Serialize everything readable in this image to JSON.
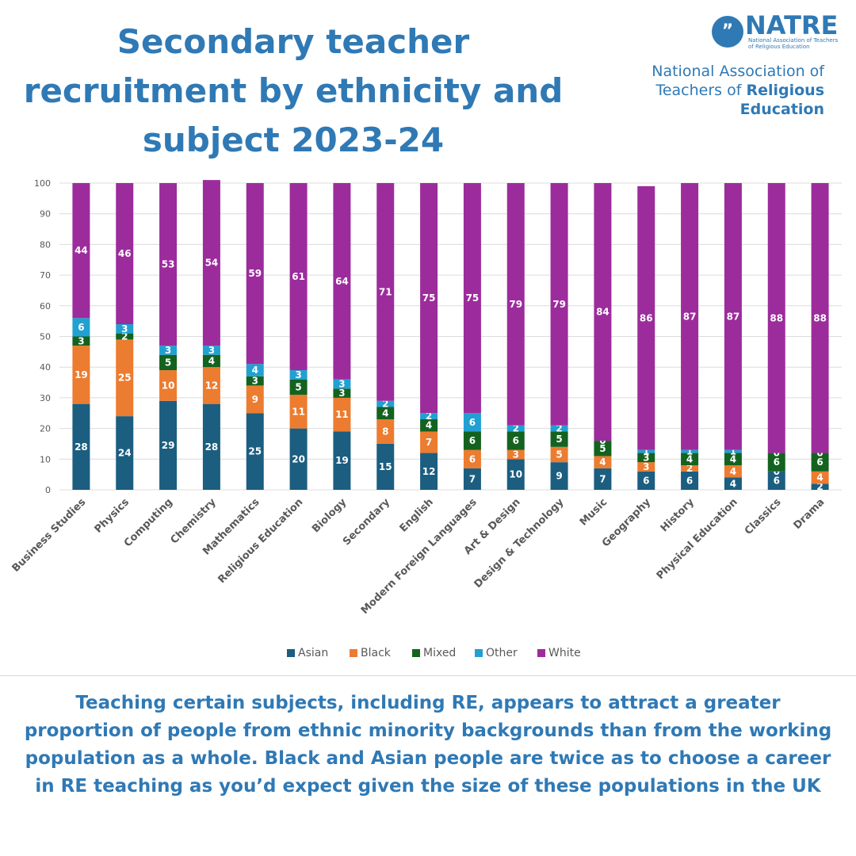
{
  "title": "Secondary teacher recruitment by ethnicity and subject 2023-24",
  "logo": {
    "mark": "”",
    "abbr": "NATRE",
    "small": "National Association of Teachers of Religious Education",
    "full_prefix": "National Association of Teachers of ",
    "full_bold": "Religious Education"
  },
  "caption": "Teaching certain subjects, including RE, appears to attract a greater proportion of people from ethnic minority backgrounds than from the working population as a whole.  Black and Asian people are twice as to choose a career in RE teaching as you’d expect given the size of these populations in the UK",
  "colors": {
    "Asian": "#1b5e80",
    "Black": "#ec7c30",
    "Mixed": "#14621f",
    "Other": "#21a0d2",
    "White": "#9c2c9c"
  },
  "chart_data": {
    "type": "bar",
    "stacked": true,
    "title": "",
    "xlabel": "",
    "ylabel": "",
    "ylim": [
      0,
      100
    ],
    "yticks": [
      0,
      10,
      20,
      30,
      40,
      50,
      60,
      70,
      80,
      90,
      100
    ],
    "grid": true,
    "legend": "bottom",
    "categories": [
      "Business Studies",
      "Physics",
      "Computing",
      "Chemistry",
      "Mathematics",
      "Religious Education",
      "Biology",
      "Secondary",
      "English",
      "Modern Foreign Languages",
      "Art & Design",
      "Design & Technology",
      "Music",
      "Geography",
      "History",
      "Physical Education",
      "Classics",
      "Drama"
    ],
    "series": [
      {
        "name": "Asian",
        "values": [
          28,
          24,
          29,
          28,
          25,
          20,
          19,
          15,
          12,
          7,
          10,
          9,
          7,
          6,
          6,
          4,
          6,
          2
        ]
      },
      {
        "name": "Black",
        "values": [
          19,
          25,
          10,
          12,
          9,
          11,
          11,
          8,
          7,
          6,
          3,
          5,
          4,
          3,
          2,
          4,
          0,
          4
        ]
      },
      {
        "name": "Mixed",
        "values": [
          3,
          2,
          5,
          4,
          3,
          5,
          3,
          4,
          4,
          6,
          6,
          5,
          5,
          3,
          4,
          4,
          6,
          6
        ]
      },
      {
        "name": "Other",
        "values": [
          6,
          3,
          3,
          3,
          4,
          3,
          3,
          2,
          2,
          6,
          2,
          2,
          0,
          1,
          1,
          1,
          0,
          0
        ]
      },
      {
        "name": "White",
        "values": [
          44,
          46,
          53,
          54,
          59,
          61,
          64,
          71,
          75,
          75,
          79,
          79,
          84,
          86,
          87,
          87,
          88,
          88
        ]
      }
    ]
  }
}
